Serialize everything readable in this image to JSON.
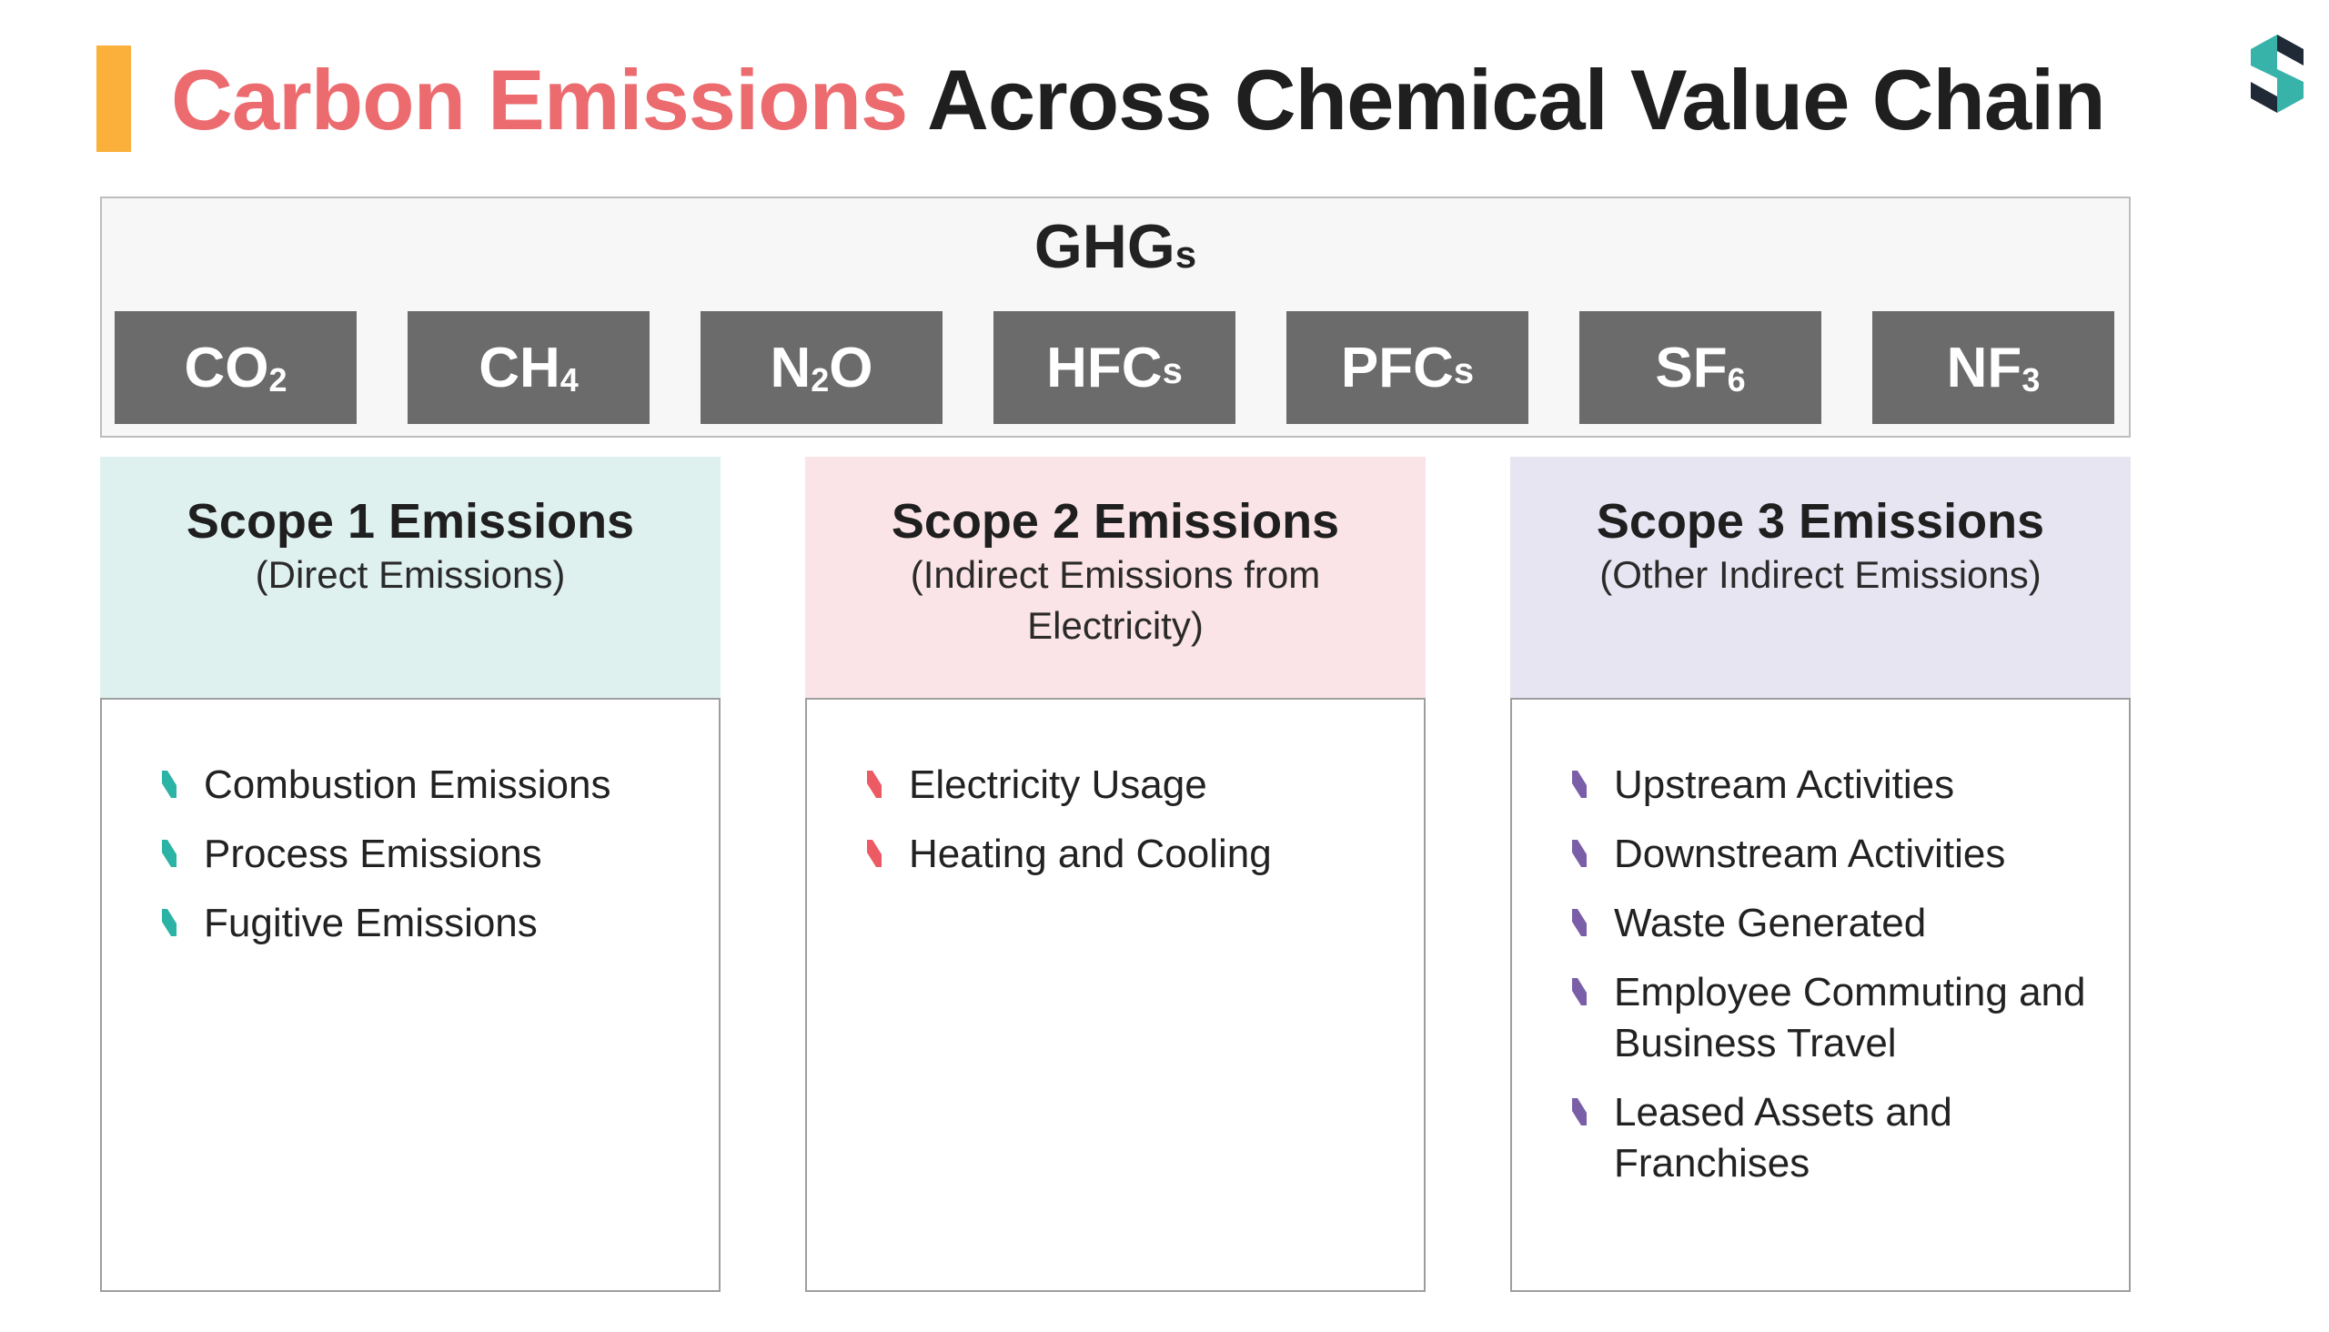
{
  "header": {
    "title_highlight": "Carbon Emissions",
    "title_rest": "Across Chemical Value Chain",
    "accent_color": "#fbb03b",
    "highlight_color": "#ec6b6f"
  },
  "logo": {
    "icon": "brand-logo-icon",
    "colors": [
      "#1f2a36",
      "#37b3a9"
    ]
  },
  "ghg": {
    "title": "GHG",
    "title_suffix": "s",
    "gases": [
      {
        "base": "CO",
        "sub": "2"
      },
      {
        "base": "CH",
        "sub": "4"
      },
      {
        "base": "N",
        "sub": "2",
        "tail": "O"
      },
      {
        "base": "HFC",
        "suffix": "s"
      },
      {
        "base": "PFC",
        "suffix": "s"
      },
      {
        "base": "SF",
        "sub": "6"
      },
      {
        "base": "NF",
        "sub": "3"
      }
    ]
  },
  "scopes": [
    {
      "title": "Scope 1 Emissions",
      "desc": "(Direct Emissions)",
      "head_color": "#dff1ef",
      "marker_color": "#2bb3a6",
      "items": [
        "Combustion Emissions",
        "Process Emissions",
        "Fugitive Emissions"
      ]
    },
    {
      "title": "Scope 2 Emissions",
      "desc": "(Indirect Emissions from Electricity)",
      "head_color": "#fbe4e7",
      "marker_color": "#ec5a64",
      "items": [
        "Electricity Usage",
        "Heating and Cooling"
      ]
    },
    {
      "title": "Scope 3 Emissions",
      "desc": "(Other Indirect Emissions)",
      "head_color": "#e6e5f1",
      "marker_color": "#7a5fa8",
      "items": [
        "Upstream Activities",
        "Downstream Activities",
        "Waste Generated",
        "Employee Commuting and Business Travel",
        "Leased Assets and Franchises"
      ]
    }
  ]
}
